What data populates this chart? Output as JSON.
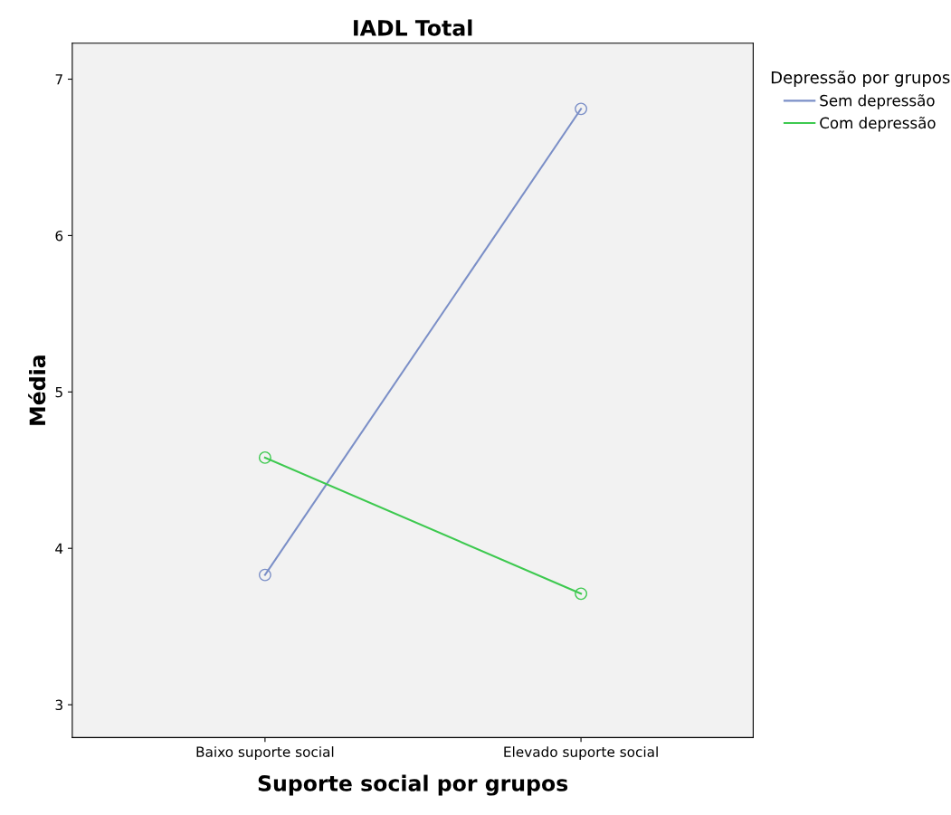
{
  "chart_data": {
    "type": "line",
    "title": "IADL Total",
    "xlabel": "Suporte social por grupos",
    "ylabel": "Média",
    "legend_title": "Depressão por grupos",
    "categories": [
      "Baixo suporte social",
      "Elevado suporte social"
    ],
    "series": [
      {
        "name": "Sem depressão",
        "color": "#7b8fc7",
        "values": [
          3.83,
          6.81
        ]
      },
      {
        "name": "Com depressão",
        "color": "#3dc94f",
        "values": [
          4.58,
          3.71
        ]
      }
    ],
    "ylim": [
      2.79,
      7.23
    ],
    "yticks": [
      3,
      4,
      5,
      6,
      7
    ],
    "grid": false,
    "legend": "right",
    "marker": "circle",
    "line_style": "solid"
  }
}
